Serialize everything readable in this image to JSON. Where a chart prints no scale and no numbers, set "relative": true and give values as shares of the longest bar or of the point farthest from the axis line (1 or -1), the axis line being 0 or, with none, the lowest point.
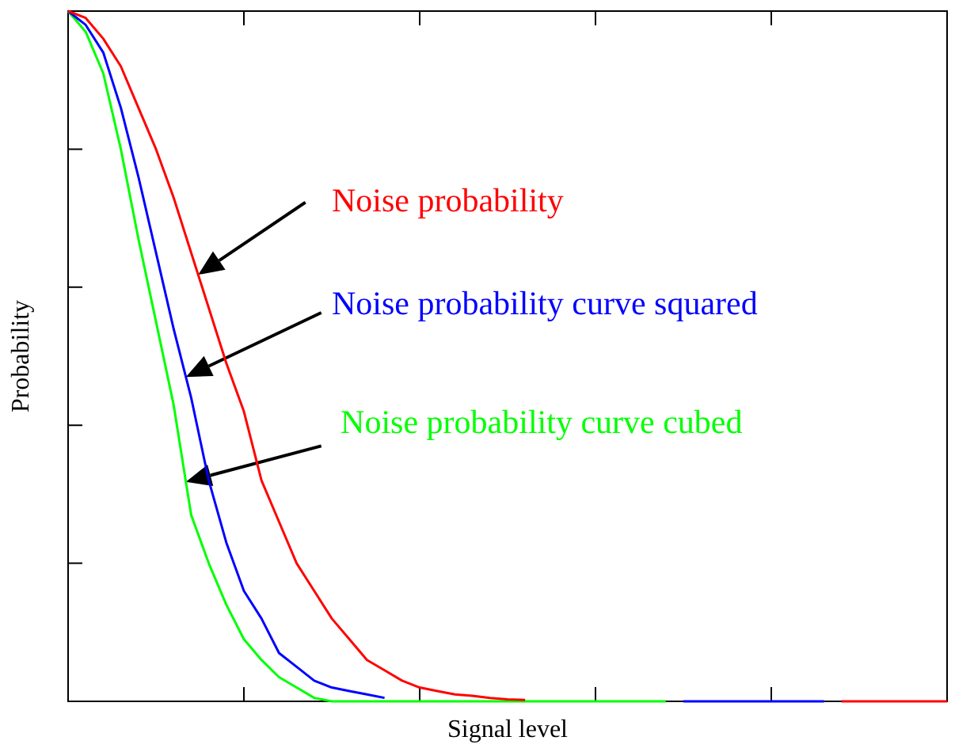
{
  "chart_data": {
    "type": "line",
    "xlabel": "Signal level",
    "ylabel": "Probability",
    "relative": true,
    "legend": false,
    "marker": "none",
    "line_style": "solid",
    "categories": [
      null,
      null,
      null,
      null,
      null,
      null,
      null,
      null,
      null,
      null,
      null,
      null,
      null,
      null,
      null,
      null,
      null,
      null,
      null,
      null,
      null,
      null,
      null,
      null,
      null,
      null,
      null,
      null,
      null,
      null,
      null,
      null,
      null,
      null,
      null,
      null,
      null,
      null,
      null,
      null,
      null,
      null,
      null,
      null,
      null,
      null,
      null,
      null,
      null,
      null,
      null
    ],
    "series": [
      {
        "name": "Noise probability",
        "color": "#ff0000",
        "values": [
          1,
          0.99,
          0.96,
          0.92,
          0.86,
          0.8,
          0.73,
          0.65,
          0.57,
          0.49,
          0.42,
          0.32,
          0.26,
          0.2,
          0.16,
          0.12,
          0.09,
          0.06,
          0.045,
          0.03,
          0.02,
          0.015,
          0.01,
          0.008,
          0.005,
          0.003,
          0.002,
          null,
          null,
          null,
          null,
          null,
          null,
          null,
          null,
          null,
          null,
          null,
          null,
          null,
          null,
          null,
          null,
          null,
          0,
          0,
          0,
          0,
          0,
          0,
          0
        ]
      },
      {
        "name": "Noise probability curve squared",
        "color": "#0000ff",
        "values": [
          1,
          0.98,
          0.94,
          0.86,
          0.76,
          0.65,
          0.54,
          0.44,
          0.32,
          0.23,
          0.16,
          0.12,
          0.07,
          0.05,
          0.03,
          0.02,
          0.015,
          0.01,
          0.005,
          null,
          null,
          null,
          null,
          null,
          null,
          null,
          null,
          null,
          null,
          null,
          null,
          null,
          null,
          null,
          null,
          0,
          0,
          0,
          0,
          0,
          0,
          0,
          0,
          0,
          null,
          null,
          null,
          null,
          null,
          null,
          null
        ]
      },
      {
        "name": "Noise probability curve cubed",
        "color": "#00ff00",
        "values": [
          1,
          0.97,
          0.91,
          0.8,
          0.67,
          0.55,
          0.43,
          0.27,
          0.2,
          0.14,
          0.09,
          0.06,
          0.035,
          0.02,
          0.005,
          0,
          0,
          0,
          0,
          0,
          0,
          0,
          0,
          0,
          0,
          0,
          0,
          0,
          0,
          0,
          0,
          0,
          0,
          0,
          0,
          null,
          null,
          null,
          null,
          null,
          null,
          null,
          null,
          null,
          null,
          null,
          null,
          null,
          null,
          null,
          null
        ]
      }
    ]
  }
}
